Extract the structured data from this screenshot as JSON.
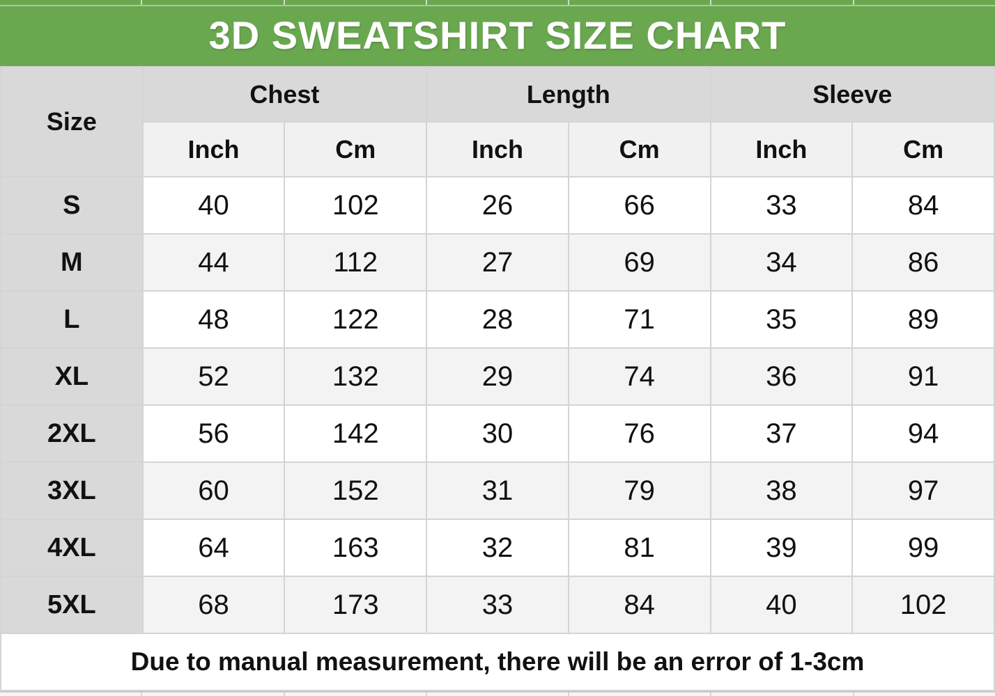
{
  "title": "3D SWEATSHIRT SIZE CHART",
  "note": "Due to manual measurement, there will be an error of 1-3cm",
  "columns": {
    "size_header": "Size",
    "groups": [
      "Chest",
      "Length",
      "Sleeve"
    ],
    "units": [
      "Inch",
      "Cm",
      "Inch",
      "Cm",
      "Inch",
      "Cm"
    ]
  },
  "rows": [
    {
      "size": "S",
      "values": [
        "40",
        "102",
        "26",
        "66",
        "33",
        "84"
      ]
    },
    {
      "size": "M",
      "values": [
        "44",
        "112",
        "27",
        "69",
        "34",
        "86"
      ]
    },
    {
      "size": "L",
      "values": [
        "48",
        "122",
        "28",
        "71",
        "35",
        "89"
      ]
    },
    {
      "size": "XL",
      "values": [
        "52",
        "132",
        "29",
        "74",
        "36",
        "91"
      ]
    },
    {
      "size": "2XL",
      "values": [
        "56",
        "142",
        "30",
        "76",
        "37",
        "94"
      ]
    },
    {
      "size": "3XL",
      "values": [
        "60",
        "152",
        "31",
        "79",
        "38",
        "97"
      ]
    },
    {
      "size": "4XL",
      "values": [
        "64",
        "163",
        "32",
        "81",
        "39",
        "99"
      ]
    },
    {
      "size": "5XL",
      "values": [
        "68",
        "173",
        "33",
        "84",
        "40",
        "102"
      ]
    }
  ],
  "colors": {
    "banner_green": "#6aa84f",
    "header_gray": "#d9d9d9",
    "unit_row_gray": "#f1f1f1",
    "alt_row_gray": "#f3f3f3",
    "note_red": "#ff0000"
  },
  "chart_data": {
    "type": "table",
    "title": "3D SWEATSHIRT SIZE CHART",
    "column_groups": [
      "Chest",
      "Length",
      "Sleeve"
    ],
    "columns": [
      "Size",
      "Chest Inch",
      "Chest Cm",
      "Length Inch",
      "Length Cm",
      "Sleeve Inch",
      "Sleeve Cm"
    ],
    "rows": [
      [
        "S",
        40,
        102,
        26,
        66,
        33,
        84
      ],
      [
        "M",
        44,
        112,
        27,
        69,
        34,
        86
      ],
      [
        "L",
        48,
        122,
        28,
        71,
        35,
        89
      ],
      [
        "XL",
        52,
        132,
        29,
        74,
        36,
        91
      ],
      [
        "2XL",
        56,
        142,
        30,
        76,
        37,
        94
      ],
      [
        "3XL",
        60,
        152,
        31,
        79,
        38,
        97
      ],
      [
        "4XL",
        64,
        163,
        32,
        81,
        39,
        99
      ],
      [
        "5XL",
        68,
        173,
        33,
        84,
        40,
        102
      ]
    ],
    "footnote": "Due to manual measurement, there will be an error of 1-3cm"
  }
}
